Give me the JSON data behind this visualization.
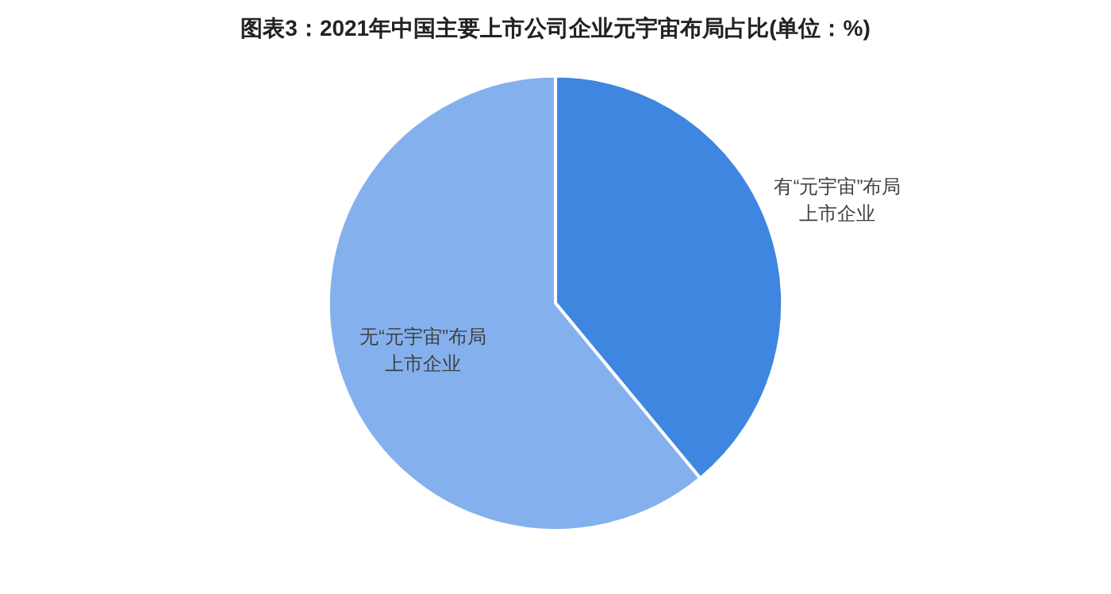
{
  "chart_data": {
    "type": "pie",
    "title": "图表3：2021年中国主要上市公司企业元宇宙布局占比(单位：%)",
    "categories": [
      "有“元宇宙”布局上市企业",
      "无“元宇宙”布局上市企业"
    ],
    "values": [
      39,
      61
    ],
    "colors": [
      "#3f86e0",
      "#84b1ee"
    ],
    "legend": false
  }
}
